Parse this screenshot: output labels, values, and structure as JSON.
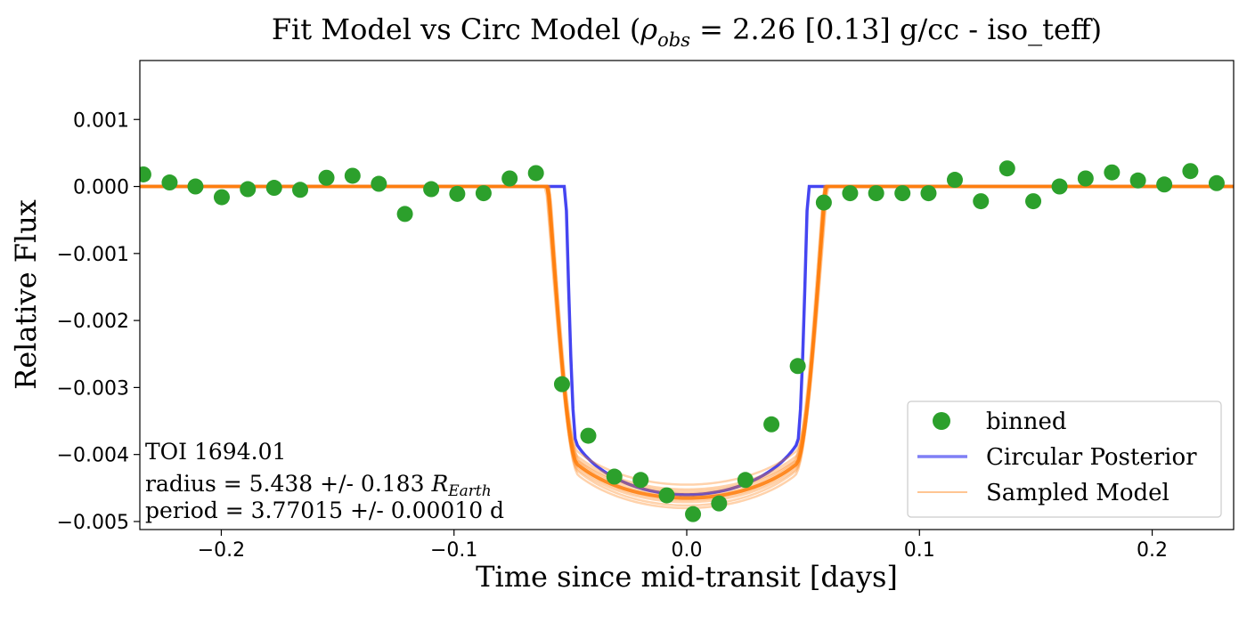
{
  "chart_data": {
    "type": "scatter",
    "title": {
      "prefix": "Fit Model vs Circ Model (",
      "rho_symbol": "ρ",
      "rho_subscript": "obs",
      "suffix": " = 2.26 [0.13] g/cc - iso_teff)"
    },
    "xlabel": "Time since mid-transit [days]",
    "ylabel": "Relative Flux",
    "xlim": [
      -0.235,
      0.235
    ],
    "ylim": [
      -0.00512,
      0.00188
    ],
    "x_ticks": [
      -0.2,
      -0.1,
      0.0,
      0.1,
      0.2
    ],
    "x_tick_labels": [
      "−0.2",
      "−0.1",
      "0.0",
      "0.1",
      "0.2"
    ],
    "y_ticks": [
      0.001,
      0.0,
      -0.001,
      -0.002,
      -0.003,
      -0.004,
      -0.005
    ],
    "y_tick_labels": [
      "0.001",
      "0.000",
      "−0.001",
      "−0.002",
      "−0.003",
      "−0.004",
      "−0.005"
    ],
    "grid": false,
    "legend_position": "lower-right",
    "annotation": {
      "line1": "TOI 1694.01",
      "line2_prefix": "radius = 5.438 +/- 0.183 ",
      "line2_symbol": "R",
      "line2_subscript": "Earth",
      "line3": "period = 3.77015 +/- 0.00010 d"
    },
    "series": [
      {
        "name": "binned",
        "kind": "scatter",
        "color": "#2ca02c",
        "x": [
          -0.2335,
          -0.2222,
          -0.2111,
          -0.1998,
          -0.1886,
          -0.1773,
          -0.1661,
          -0.1548,
          -0.1436,
          -0.1323,
          -0.1211,
          -0.1098,
          -0.0986,
          -0.0873,
          -0.0761,
          -0.0648,
          -0.0536,
          -0.0423,
          -0.0311,
          -0.0198,
          -0.0086,
          0.0027,
          0.0139,
          0.0252,
          0.0364,
          0.0477,
          0.0589,
          0.0702,
          0.0814,
          0.0927,
          0.1039,
          0.1152,
          0.1264,
          0.1377,
          0.1489,
          0.1602,
          0.1714,
          0.1827,
          0.1939,
          0.2052,
          0.2164,
          0.2277
        ],
        "y": [
          0.00018,
          6e-05,
          0.0,
          -0.00016,
          -4e-05,
          -2e-05,
          -5e-05,
          0.00013,
          0.00016,
          4e-05,
          -0.00041,
          -4e-05,
          -0.00011,
          -0.0001,
          0.00012,
          0.0002,
          -0.00295,
          -0.00372,
          -0.00433,
          -0.00438,
          -0.00461,
          -0.00489,
          -0.00473,
          -0.00438,
          -0.00355,
          -0.00268,
          -0.00024,
          -0.0001,
          -0.0001,
          -0.0001,
          -0.0001,
          0.0001,
          -0.00022,
          0.00027,
          -0.00022,
          0.0,
          0.00012,
          0.00021,
          9e-05,
          3e-05,
          0.00023,
          5e-05
        ]
      },
      {
        "name": "Circular Posterior",
        "kind": "line",
        "color": "#3b3bf0",
        "model": {
          "depth": 0.0046,
          "half_duration": 0.052,
          "ingress": 0.0045
        }
      },
      {
        "name": "Sampled Model",
        "kind": "line-samples",
        "color": "#ff7f0e",
        "model": {
          "depth": 0.00465,
          "half_duration": 0.0595,
          "ingress": 0.0125
        },
        "samples": [
          {
            "depth": 0.00445,
            "half_duration": 0.0588,
            "ingress": 0.0118
          },
          {
            "depth": 0.00452,
            "half_duration": 0.0592,
            "ingress": 0.0122
          },
          {
            "depth": 0.00458,
            "half_duration": 0.0596,
            "ingress": 0.0128
          },
          {
            "depth": 0.00465,
            "half_duration": 0.0599,
            "ingress": 0.0132
          },
          {
            "depth": 0.00471,
            "half_duration": 0.0602,
            "ingress": 0.0135
          },
          {
            "depth": 0.00476,
            "half_duration": 0.0594,
            "ingress": 0.0124
          },
          {
            "depth": 0.0048,
            "half_duration": 0.0605,
            "ingress": 0.014
          },
          {
            "depth": 0.00462,
            "half_duration": 0.059,
            "ingress": 0.0115
          },
          {
            "depth": 0.00468,
            "half_duration": 0.0597,
            "ingress": 0.013
          },
          {
            "depth": 0.00455,
            "half_duration": 0.06,
            "ingress": 0.0138
          }
        ]
      }
    ]
  }
}
